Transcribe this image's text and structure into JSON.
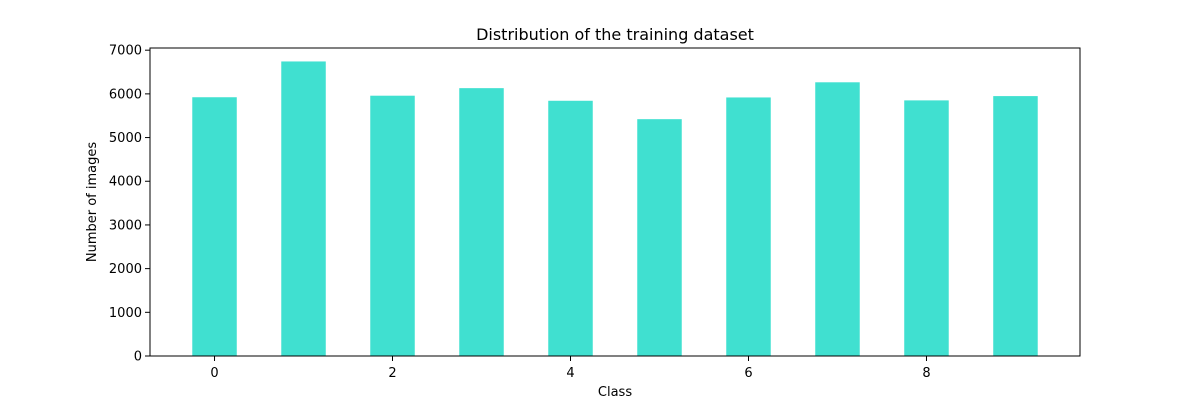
{
  "chart_data": {
    "type": "bar",
    "title": "Distribution of the training dataset",
    "xlabel": "Class",
    "ylabel": "Number of images",
    "categories": [
      0,
      1,
      2,
      3,
      4,
      5,
      6,
      7,
      8,
      9
    ],
    "values": [
      5923,
      6742,
      5958,
      6131,
      5842,
      5421,
      5918,
      6265,
      5851,
      5949
    ],
    "x_ticks": [
      0,
      2,
      4,
      6,
      8
    ],
    "y_ticks": [
      0,
      1000,
      2000,
      3000,
      4000,
      5000,
      6000,
      7000
    ],
    "ylim": [
      0,
      7050
    ],
    "xlim": [
      -0.725,
      9.725
    ],
    "bar_color": "#40e0d0",
    "grid": false,
    "legend": false
  }
}
